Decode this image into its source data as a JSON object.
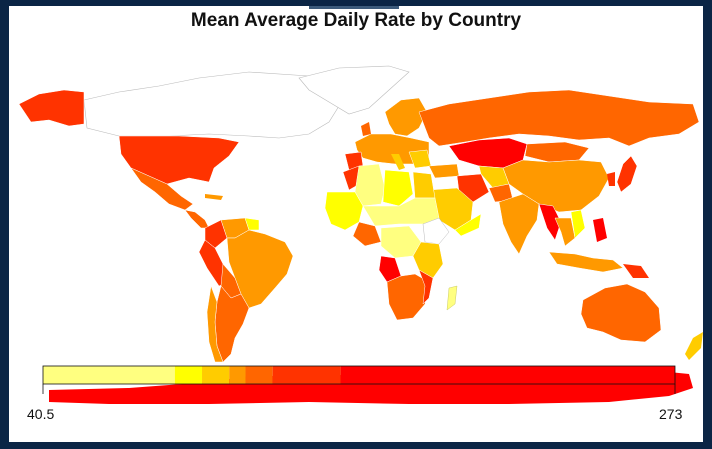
{
  "title": "Mean Average Daily Rate by Country",
  "chart_data": {
    "type": "choropleth",
    "title": "Mean Average Daily Rate by Country",
    "legend": {
      "min_label": "40.5",
      "max_label": "273",
      "range": [
        40.5,
        273
      ],
      "colors": [
        "#ffff80",
        "#ffff00",
        "#ffcc00",
        "#ff9900",
        "#ff6600",
        "#ff3300",
        "#ff0000"
      ],
      "bands": [
        {
          "from": 40.5,
          "to": 89,
          "color": "#ffff80"
        },
        {
          "from": 89,
          "to": 99,
          "color": "#ffff00"
        },
        {
          "from": 99,
          "to": 109,
          "color": "#ffcc00"
        },
        {
          "from": 109,
          "to": 115,
          "color": "#ff9900"
        },
        {
          "from": 115,
          "to": 125,
          "color": "#ff6600"
        },
        {
          "from": 125,
          "to": 150,
          "color": "#ff3300"
        },
        {
          "from": 150,
          "to": 273,
          "color": "#ff0000"
        }
      ]
    },
    "regions": [
      {
        "name": "Alaska",
        "color": "#ff3300"
      },
      {
        "name": "Canada",
        "color": "none"
      },
      {
        "name": "Greenland",
        "color": "none"
      },
      {
        "name": "United States",
        "color": "#ff3300"
      },
      {
        "name": "Mexico",
        "color": "#ff6600"
      },
      {
        "name": "Central America",
        "color": "#ff6600"
      },
      {
        "name": "Colombia",
        "color": "#ff3300"
      },
      {
        "name": "Venezuela",
        "color": "#ff9900"
      },
      {
        "name": "Peru",
        "color": "#ff3300"
      },
      {
        "name": "Brazil",
        "color": "#ff9900"
      },
      {
        "name": "Bolivia",
        "color": "#ff6600"
      },
      {
        "name": "Argentina",
        "color": "#ff6600"
      },
      {
        "name": "Chile",
        "color": "#ff6600"
      },
      {
        "name": "Western Europe",
        "color": "#ff9900"
      },
      {
        "name": "Scandinavia",
        "color": "#ff9900"
      },
      {
        "name": "Russia",
        "color": "#ff6600"
      },
      {
        "name": "Kazakhstan",
        "color": "#ff0000"
      },
      {
        "name": "Morocco",
        "color": "#ff3300"
      },
      {
        "name": "Algeria",
        "color": "#ffff80"
      },
      {
        "name": "Libya",
        "color": "#ffff00"
      },
      {
        "name": "Egypt",
        "color": "#ffcc00"
      },
      {
        "name": "Sahel",
        "color": "#ffff00"
      },
      {
        "name": "West Africa",
        "color": "#ff6600"
      },
      {
        "name": "Central Africa",
        "color": "#ffff80"
      },
      {
        "name": "Angola",
        "color": "#ff0000"
      },
      {
        "name": "Southern Africa",
        "color": "#ff6600"
      },
      {
        "name": "East Africa",
        "color": "#ffcc00"
      },
      {
        "name": "Madagascar",
        "color": "#ffff80"
      },
      {
        "name": "Saudi Arabia",
        "color": "#ffcc00"
      },
      {
        "name": "Iran",
        "color": "#ff3300"
      },
      {
        "name": "India",
        "color": "#ff9900"
      },
      {
        "name": "China",
        "color": "#ff9900"
      },
      {
        "name": "Mongolia",
        "color": "#ff6600"
      },
      {
        "name": "Japan",
        "color": "#ff3300"
      },
      {
        "name": "Myanmar",
        "color": "#ff0000"
      },
      {
        "name": "Philippines",
        "color": "#ff0000"
      },
      {
        "name": "Indonesia",
        "color": "#ff9900"
      },
      {
        "name": "Papua New Guinea",
        "color": "#ff3300"
      },
      {
        "name": "Australia",
        "color": "#ff6600"
      },
      {
        "name": "New Zealand",
        "color": "#ffcc00"
      },
      {
        "name": "Antarctica",
        "color": "#ff0000"
      }
    ]
  }
}
